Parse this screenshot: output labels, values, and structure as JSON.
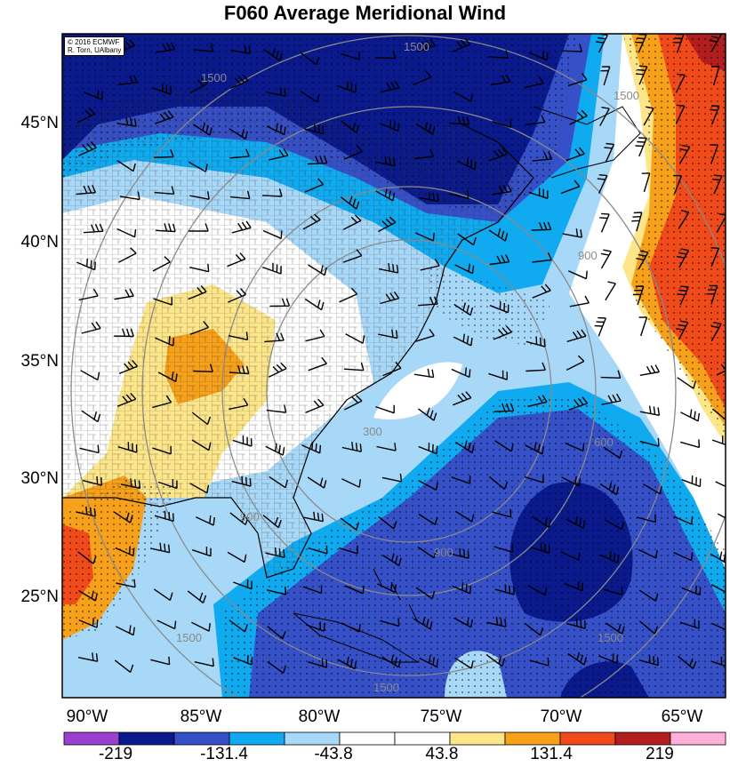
{
  "title": "F060 Average Meridional Wind",
  "credit": {
    "line1": "© 2016 ECMWF",
    "line2": "R. Torn, UAlbany"
  },
  "latitude_labels": [
    "45°N",
    "40°N",
    "35°N",
    "30°N",
    "25°N"
  ],
  "longitude_labels": [
    "90°W",
    "85°W",
    "80°W",
    "75°W",
    "70°W",
    "65°W"
  ],
  "contour_labels": [
    "1500",
    "1500",
    "1500",
    "900",
    "300",
    "900",
    "900",
    "600",
    "1500",
    "1500",
    "1500"
  ],
  "colorbar": {
    "tick_labels": [
      "-219",
      "-131.4",
      "-43.8",
      "43.8",
      "131.4",
      "219"
    ],
    "colors": [
      "#9a3fd0",
      "#0a1a8c",
      "#3650c8",
      "#10aaf0",
      "#a8d8f8",
      "#ffffff",
      "#ffffff",
      "#fde68a",
      "#f7a01a",
      "#f04a1a",
      "#b21e1e",
      "#ffb0d8"
    ]
  },
  "palette": {
    "navy": "#0a1a8c",
    "blue": "#3650c8",
    "cyan": "#10aaf0",
    "lightblue": "#a8d8f8",
    "yellow": "#fde68a",
    "orange": "#f7a01a",
    "redorange": "#f04a1a",
    "darkred": "#b21e1e"
  }
}
